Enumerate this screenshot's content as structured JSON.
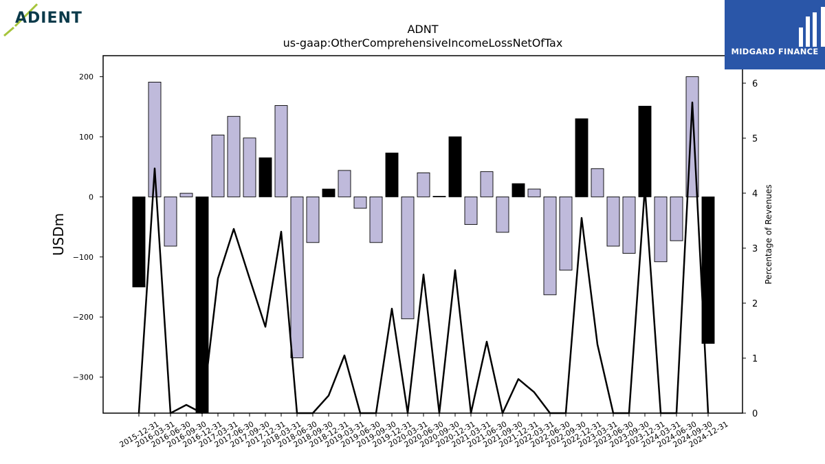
{
  "chart_data": {
    "type": "bar",
    "title": "ADNT",
    "subtitle": "us-gaap:OtherComprehensiveIncomeLossNetOfTax",
    "ylabel": "USDm",
    "y2label": "Percentage of Revenues",
    "ylim": [
      -360,
      235
    ],
    "y2lim": [
      0,
      6.5
    ],
    "yticks": [
      200,
      100,
      0,
      -100,
      -200,
      -300
    ],
    "y2ticks": [
      0,
      1,
      2,
      3,
      4,
      5,
      6
    ],
    "categories": [
      "2015-12-31",
      "2016-03-31",
      "2016-06-30",
      "2016-09-30",
      "2016-12-31",
      "2017-03-31",
      "2017-06-30",
      "2017-09-30",
      "2017-12-31",
      "2018-03-31",
      "2018-06-30",
      "2018-09-30",
      "2018-12-31",
      "2019-03-31",
      "2019-06-30",
      "2019-09-30",
      "2019-12-31",
      "2020-03-31",
      "2020-06-30",
      "2020-09-30",
      "2020-12-31",
      "2021-03-31",
      "2021-06-30",
      "2021-09-30",
      "2021-12-31",
      "2022-03-31",
      "2022-06-30",
      "2022-09-30",
      "2022-12-31",
      "2023-03-31",
      "2023-06-30",
      "2023-09-30",
      "2023-12-31",
      "2024-03-31",
      "2024-06-30",
      "2024-09-30",
      "2024-12-31"
    ],
    "series": [
      {
        "type": "bar",
        "values": [
          -150,
          191,
          -82,
          6,
          -360,
          103,
          134,
          98,
          65,
          152,
          -268,
          -76,
          13,
          44,
          -19,
          -76,
          73,
          -203,
          40,
          1,
          100,
          -46,
          42,
          -59,
          22,
          13,
          -163,
          -122,
          130,
          47,
          -82,
          -94,
          151,
          -108,
          -73,
          200,
          -244
        ],
        "annual": [
          true,
          false,
          false,
          false,
          true,
          false,
          false,
          false,
          true,
          false,
          false,
          false,
          true,
          false,
          false,
          false,
          true,
          false,
          false,
          false,
          true,
          false,
          false,
          false,
          true,
          false,
          false,
          false,
          true,
          false,
          false,
          false,
          true,
          false,
          false,
          false,
          true
        ]
      },
      {
        "type": "line",
        "axis": "right",
        "values": [
          0,
          4.45,
          0,
          0.15,
          0,
          2.45,
          3.35,
          2.45,
          1.57,
          3.3,
          0,
          0,
          0.32,
          1.05,
          0,
          0,
          1.9,
          0,
          2.52,
          0,
          2.6,
          0,
          1.3,
          0,
          0.62,
          0.38,
          0,
          0,
          3.55,
          1.25,
          0,
          0,
          4.1,
          0,
          0,
          5.65,
          0
        ]
      }
    ],
    "colors": {
      "annual_bar": "#000000",
      "quarter_bar": "#bfbadb",
      "line": "#000000"
    }
  },
  "logos": {
    "left": {
      "text": "ADIENT",
      "colors": {
        "text": "#0b3a4a",
        "accent": "#a6c43a"
      }
    },
    "right": {
      "text": "MIDGARD FINANCE",
      "colors": {
        "background": "#2a56a8",
        "text": "#ffffff"
      }
    }
  }
}
